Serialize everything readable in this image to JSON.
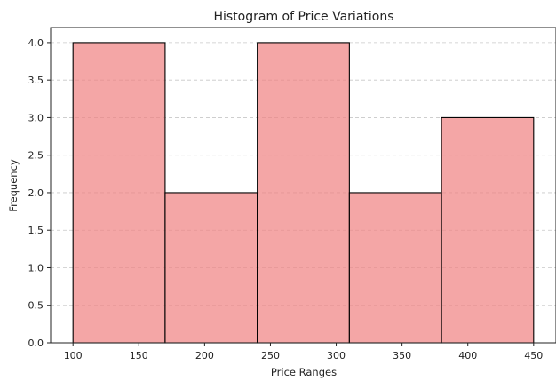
{
  "chart_data": {
    "type": "bar",
    "title": "Histogram of Price Variations",
    "xlabel": "Price Ranges",
    "ylabel": "Frequency",
    "bins": [
      {
        "start": 100,
        "end": 170,
        "value": 4
      },
      {
        "start": 170,
        "end": 240,
        "value": 2
      },
      {
        "start": 240,
        "end": 310,
        "value": 4
      },
      {
        "start": 310,
        "end": 380,
        "value": 2
      },
      {
        "start": 380,
        "end": 450,
        "value": 3
      }
    ],
    "xlim": [
      83,
      467
    ],
    "ylim": [
      0,
      4.2
    ],
    "xticks": [
      100,
      150,
      200,
      250,
      300,
      350,
      400,
      450
    ],
    "yticks": [
      0.0,
      0.5,
      1.0,
      1.5,
      2.0,
      2.5,
      3.0,
      3.5,
      4.0
    ],
    "grid": "y-dashed",
    "bar_color": "#f08080",
    "bar_opacity": 0.7,
    "edge_color": "#000000"
  }
}
